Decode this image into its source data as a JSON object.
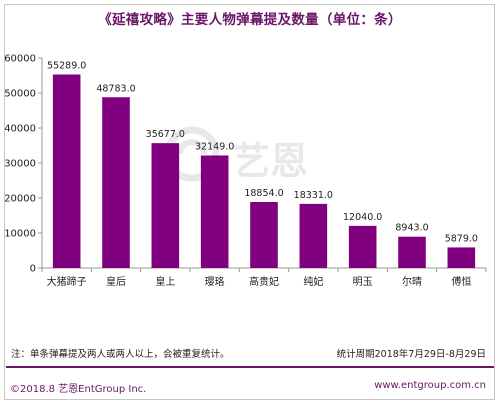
{
  "title": "《延禧攻略》主要人物弹幕提及数量（单位：条）",
  "chart_data": {
    "type": "bar",
    "title": "《延禧攻略》主要人物弹幕提及数量（单位：条）",
    "categories": [
      "大猪蹄子",
      "皇后",
      "皇上",
      "璎珞",
      "高贵妃",
      "纯妃",
      "明玉",
      "尔晴",
      "傅恒"
    ],
    "values": [
      55289.0,
      48783.0,
      35677.0,
      32149.0,
      18854.0,
      18331.0,
      12040.0,
      8943.0,
      5879.0
    ],
    "value_labels": [
      "55289.0",
      "48783.0",
      "35677.0",
      "32149.0",
      "18854.0",
      "18331.0",
      "12040.0",
      "8943.0",
      "5879.0"
    ],
    "yticks": [
      "0",
      "10000",
      "20000",
      "30000",
      "40000",
      "50000",
      "60000"
    ],
    "ylim": [
      0,
      60000
    ],
    "xlabel": "",
    "ylabel": "",
    "grid": false,
    "legend": "none",
    "bar_color": "#800080"
  },
  "note": "注：单条弹幕提及两人或两人以上，会被重复统计。",
  "period": "统计周期2018年7月29日-8月29日",
  "copyright": "©2018.8  艺恩EntGroup Inc.",
  "website": "www.entgroup.com.cn",
  "watermark": {
    "text": "艺恩",
    "icon": "entgroup-logo-icon"
  },
  "colors": {
    "accent": "#6a1568",
    "axis": "#999999"
  }
}
